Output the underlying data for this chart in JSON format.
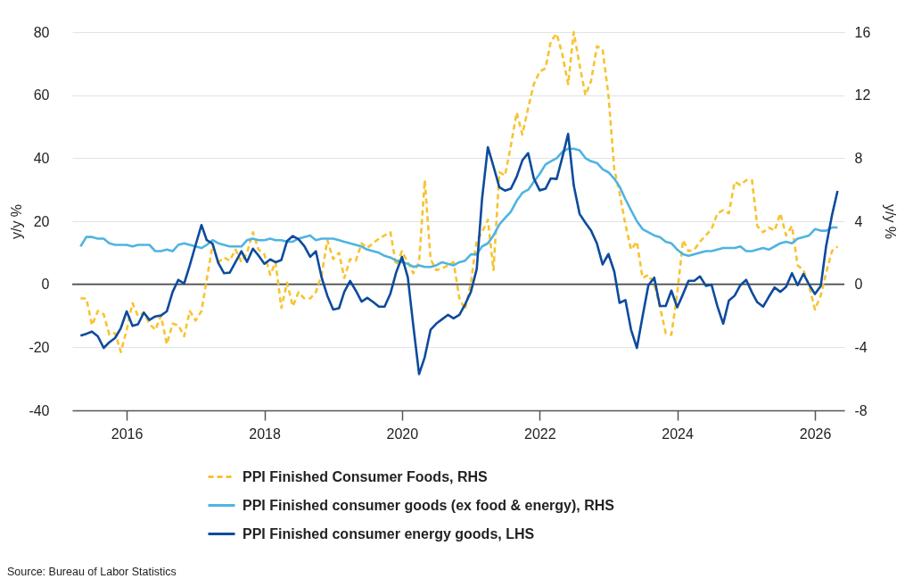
{
  "chart_data": {
    "type": "line",
    "ylabel": "y/y %",
    "y2label": "y/y %",
    "x": [
      "2015-05",
      "2015-06",
      "2015-07",
      "2015-08",
      "2015-09",
      "2015-10",
      "2015-11",
      "2015-12",
      "2016-01",
      "2016-02",
      "2016-03",
      "2016-04",
      "2016-05",
      "2016-06",
      "2016-07",
      "2016-08",
      "2016-09",
      "2016-10",
      "2016-11",
      "2016-12",
      "2017-01",
      "2017-02",
      "2017-03",
      "2017-04",
      "2017-05",
      "2017-06",
      "2017-07",
      "2017-08",
      "2017-09",
      "2017-10",
      "2017-11",
      "2017-12",
      "2018-01",
      "2018-02",
      "2018-03",
      "2018-04",
      "2018-05",
      "2018-06",
      "2018-07",
      "2018-08",
      "2018-09",
      "2018-10",
      "2018-11",
      "2018-12",
      "2019-01",
      "2019-02",
      "2019-03",
      "2019-04",
      "2019-05",
      "2019-06",
      "2019-07",
      "2019-08",
      "2019-09",
      "2019-10",
      "2019-11",
      "2019-12",
      "2020-01",
      "2020-02",
      "2020-03",
      "2020-04",
      "2020-05",
      "2020-06",
      "2020-07",
      "2020-08",
      "2020-09",
      "2020-10",
      "2020-11",
      "2020-12",
      "2021-01",
      "2021-02",
      "2021-03",
      "2021-04",
      "2021-05",
      "2021-06",
      "2021-07",
      "2021-08",
      "2021-09",
      "2021-10",
      "2021-11",
      "2021-12",
      "2022-01",
      "2022-02",
      "2022-03",
      "2022-04",
      "2022-05",
      "2022-06",
      "2022-07",
      "2022-08",
      "2022-09",
      "2022-10",
      "2022-11",
      "2022-12",
      "2023-01",
      "2023-02",
      "2023-03",
      "2023-04",
      "2023-05",
      "2023-06",
      "2023-07",
      "2023-08",
      "2023-09",
      "2023-10",
      "2023-11",
      "2023-12",
      "2024-01",
      "2024-02",
      "2024-03",
      "2024-04",
      "2024-05",
      "2024-06",
      "2024-07",
      "2024-08",
      "2024-09",
      "2024-10",
      "2024-11",
      "2024-12",
      "2025-01",
      "2025-02",
      "2025-03",
      "2025-04",
      "2025-05",
      "2025-06",
      "2025-07",
      "2025-08",
      "2025-09",
      "2025-10",
      "2025-11",
      "2025-12",
      "2026-01",
      "2026-02",
      "2026-03",
      "2026-04",
      "2026-05"
    ],
    "series": [
      {
        "name": "PPI Finished Consumer Foods, RHS",
        "color": "#f7c331",
        "axis": "y2",
        "line_style": "dashed",
        "values": [
          -0.9,
          -0.9,
          -2.6,
          -1.7,
          -1.9,
          -3.2,
          -3.1,
          -4.3,
          -2.9,
          -1.2,
          -2.0,
          -1.8,
          -2.5,
          -2.9,
          -2.0,
          -3.8,
          -2.5,
          -2.6,
          -3.3,
          -1.7,
          -2.3,
          -1.7,
          0.3,
          2.5,
          1.4,
          1.7,
          1.5,
          2.2,
          1.4,
          2.0,
          3.3,
          2.2,
          1.9,
          0.6,
          1.4,
          -1.5,
          0.1,
          -1.4,
          -0.5,
          -0.9,
          -0.9,
          -0.5,
          0.6,
          2.8,
          1.6,
          2.0,
          0.4,
          1.6,
          1.5,
          2.6,
          2.3,
          2.6,
          2.9,
          3.1,
          3.3,
          1.2,
          2.1,
          1.4,
          0.7,
          1.4,
          6.6,
          1.6,
          0.9,
          1.0,
          1.2,
          1.4,
          -0.9,
          -1.6,
          0.1,
          2.8,
          3.3,
          4.1,
          0.9,
          7.1,
          6.9,
          8.8,
          10.9,
          9.5,
          11.2,
          12.7,
          13.5,
          13.7,
          15.4,
          15.9,
          14.6,
          12.7,
          16.0,
          13.9,
          12.0,
          12.9,
          15.1,
          14.9,
          12.0,
          7.3,
          5.8,
          3.8,
          2.2,
          2.7,
          0.4,
          0.6,
          0.0,
          -1.4,
          -3.1,
          -3.2,
          -0.6,
          2.8,
          2.1,
          2.2,
          2.7,
          3.1,
          3.5,
          4.5,
          4.7,
          4.5,
          6.5,
          6.3,
          6.6,
          6.6,
          3.7,
          3.3,
          3.6,
          3.4,
          4.5,
          3.1,
          3.7,
          1.2,
          0.9,
          -0.1,
          -1.6,
          -0.7,
          0.7,
          2.1,
          2.4
        ]
      },
      {
        "name": "PPI Finished consumer goods (ex food & energy), RHS",
        "color": "#4eb4e2",
        "axis": "y2",
        "line_style": "solid",
        "values": [
          2.4,
          3.0,
          3.0,
          2.9,
          2.9,
          2.6,
          2.5,
          2.5,
          2.5,
          2.4,
          2.5,
          2.5,
          2.5,
          2.1,
          2.1,
          2.2,
          2.1,
          2.5,
          2.6,
          2.5,
          2.4,
          2.3,
          2.5,
          2.8,
          2.6,
          2.5,
          2.4,
          2.4,
          2.4,
          2.8,
          2.9,
          2.8,
          2.8,
          2.9,
          2.8,
          2.8,
          2.7,
          2.7,
          2.9,
          3.0,
          3.1,
          2.8,
          2.9,
          2.9,
          2.9,
          2.8,
          2.7,
          2.6,
          2.5,
          2.4,
          2.2,
          2.1,
          2.0,
          1.8,
          1.7,
          1.5,
          1.4,
          1.3,
          1.1,
          1.2,
          1.1,
          1.1,
          1.2,
          1.4,
          1.3,
          1.2,
          1.4,
          1.5,
          1.9,
          1.9,
          2.4,
          2.6,
          3.1,
          3.8,
          4.2,
          4.6,
          5.3,
          5.8,
          6.0,
          6.5,
          7.0,
          7.6,
          7.8,
          8.0,
          8.4,
          8.6,
          8.6,
          8.5,
          8.0,
          7.8,
          7.7,
          7.3,
          7.1,
          6.7,
          6.2,
          5.4,
          4.7,
          4.0,
          3.5,
          3.3,
          3.1,
          3.0,
          2.7,
          2.6,
          2.2,
          1.9,
          1.8,
          1.9,
          2.0,
          2.1,
          2.1,
          2.2,
          2.3,
          2.3,
          2.3,
          2.4,
          2.1,
          2.1,
          2.2,
          2.3,
          2.2,
          2.4,
          2.6,
          2.7,
          2.6,
          2.9,
          3.0,
          3.1,
          3.5,
          3.4,
          3.4,
          3.6,
          3.6
        ]
      },
      {
        "name": "PPI Finished consumer energy goods, LHS",
        "color": "#0d4b9d",
        "axis": "y",
        "line_style": "solid",
        "values": [
          -16.3,
          -15.7,
          -15.0,
          -16.5,
          -20.2,
          -18.4,
          -17.0,
          -13.9,
          -8.6,
          -13.2,
          -12.7,
          -9.0,
          -11.3,
          -10.2,
          -9.9,
          -8.6,
          -2.4,
          1.4,
          0.2,
          6.0,
          12.5,
          18.8,
          14.0,
          12.9,
          6.8,
          3.5,
          3.7,
          7.1,
          10.5,
          7.1,
          11.3,
          9.1,
          6.5,
          7.9,
          7.0,
          7.7,
          13.7,
          15.3,
          14.3,
          12.1,
          8.7,
          10.5,
          2.1,
          -3.6,
          -8.0,
          -7.6,
          -2.4,
          1.1,
          -2.0,
          -5.5,
          -4.3,
          -5.6,
          -7.1,
          -7.1,
          -2.9,
          3.7,
          8.7,
          2.3,
          -13.0,
          -28.5,
          -23.1,
          -14.4,
          -12.5,
          -11.1,
          -9.7,
          -10.8,
          -9.7,
          -6.4,
          -2.4,
          4.9,
          27.0,
          43.5,
          37.4,
          30.8,
          29.7,
          30.3,
          34.1,
          39.3,
          41.6,
          33.6,
          29.8,
          30.3,
          33.6,
          33.4,
          40.2,
          47.7,
          31.3,
          22.3,
          19.5,
          17.0,
          12.9,
          6.3,
          9.6,
          4.0,
          -5.9,
          -5.0,
          -14.4,
          -20.2,
          -10.2,
          -0.3,
          2.1,
          -6.9,
          -6.9,
          -2.0,
          -7.3,
          -3.1,
          1.1,
          1.1,
          2.5,
          -0.5,
          -0.1,
          -6.9,
          -12.5,
          -5.2,
          -3.6,
          -0.3,
          1.4,
          -2.6,
          -5.7,
          -7.1,
          -4.0,
          -1.0,
          -2.4,
          -0.8,
          3.5,
          -0.3,
          3.3,
          -0.1,
          -3.1,
          -0.5,
          12.0,
          21.8,
          29.6
        ]
      }
    ],
    "xlim": [
      "2015-03-18",
      "2026-06-06"
    ],
    "xticks": [
      "2016",
      "2018",
      "2020",
      "2022",
      "2024",
      "2026"
    ],
    "ylim": [
      -40,
      80
    ],
    "yticks": [
      -40,
      -20,
      0,
      20,
      40,
      60,
      80
    ],
    "y2lim": [
      -8,
      16
    ],
    "y2ticks": [
      -8,
      -4,
      0,
      4,
      8,
      12,
      16
    ],
    "grid": "y",
    "legend": "bottom",
    "ref_lines": [
      {
        "axis": "y",
        "value": 0,
        "color": "#4d4d4d"
      }
    ],
    "annotations": [
      "Source: Bureau of Labor Statistics"
    ]
  }
}
